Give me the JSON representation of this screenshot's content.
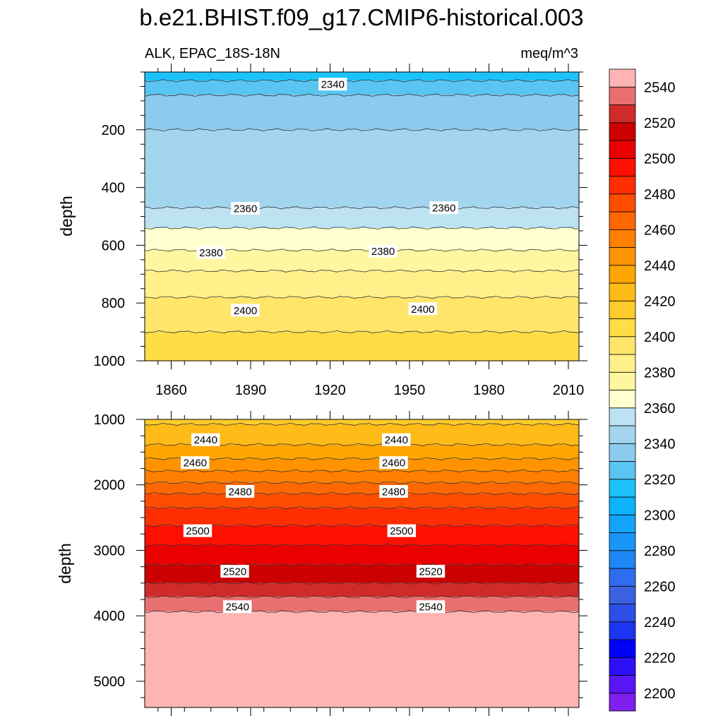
{
  "title": "b.e21.BHIST.f09_g17.CMIP6-historical.003",
  "left_label": "ALK, EPAC_18S-18N",
  "right_label": "meq/m^3",
  "colorbar": {
    "levels": [
      2200,
      2210,
      2220,
      2230,
      2240,
      2250,
      2260,
      2270,
      2280,
      2290,
      2300,
      2310,
      2320,
      2330,
      2340,
      2350,
      2360,
      2370,
      2380,
      2390,
      2400,
      2410,
      2420,
      2430,
      2440,
      2450,
      2460,
      2470,
      2480,
      2490,
      2500,
      2510,
      2520,
      2530,
      2540,
      2550
    ],
    "colors": [
      "#7f1ff0",
      "#5a15f5",
      "#2d10f7",
      "#0000ff",
      "#1c35f3",
      "#2b4fe8",
      "#3a62e0",
      "#2e6cf0",
      "#1f86f5",
      "#1995f7",
      "#11a4fa",
      "#0ab3fc",
      "#1cc2fa",
      "#5ac4f2",
      "#8ccbee",
      "#a3d5ef",
      "#bde2f2",
      "#ffffd0",
      "#fff7a0",
      "#fff08a",
      "#ffe66a",
      "#ffdd44",
      "#ffcb2a",
      "#ffbb17",
      "#ffa600",
      "#ff9400",
      "#ff7f00",
      "#ff6800",
      "#ff4d00",
      "#ff2e00",
      "#ff0f00",
      "#ea0000",
      "#cc0000",
      "#d12a2a",
      "#e87070",
      "#ffb4b4"
    ],
    "tick_labels": [
      "2200",
      "2220",
      "2240",
      "2260",
      "2280",
      "2300",
      "2320",
      "2340",
      "2360",
      "2380",
      "2400",
      "2420",
      "2440",
      "2460",
      "2480",
      "2500",
      "2520",
      "2540"
    ]
  },
  "chart_data": [
    {
      "type": "heatmap",
      "panel": "upper",
      "xlabel": "",
      "ylabel": "depth",
      "xlim": [
        1850,
        2014
      ],
      "ylim": [
        1000,
        0
      ],
      "x_ticks": [
        1860,
        1890,
        1920,
        1950,
        1980,
        2010
      ],
      "x_tick_labels": [
        "1860",
        "1890",
        "1920",
        "1950",
        "1980",
        "2010"
      ],
      "y_ticks": [
        200,
        400,
        600,
        800,
        1000
      ],
      "y_tick_labels": [
        "200",
        "400",
        "600",
        "800",
        "1000"
      ],
      "profile": {
        "depth": [
          0,
          30,
          60,
          100,
          150,
          200,
          300,
          380,
          430,
          470,
          500,
          540,
          600,
          660,
          700,
          760,
          820,
          900,
          1000
        ],
        "alk": [
          2325,
          2330,
          2338,
          2342,
          2346,
          2350,
          2350,
          2352,
          2356,
          2360,
          2364,
          2370,
          2378,
          2385,
          2392,
          2398,
          2404,
          2410,
          2414
        ]
      },
      "contour_labels": [
        {
          "text": "2340",
          "x": 1921,
          "depth": 42
        },
        {
          "text": "2360",
          "x": 1888,
          "depth": 472
        },
        {
          "text": "2360",
          "x": 1963,
          "depth": 470
        },
        {
          "text": "2380",
          "x": 1875,
          "depth": 625
        },
        {
          "text": "2380",
          "x": 1940,
          "depth": 620
        },
        {
          "text": "2400",
          "x": 1888,
          "depth": 825
        },
        {
          "text": "2400",
          "x": 1955,
          "depth": 820
        }
      ]
    },
    {
      "type": "heatmap",
      "panel": "lower",
      "xlabel": "",
      "ylabel": "depth",
      "xlim": [
        1850,
        2014
      ],
      "ylim": [
        5400,
        1000
      ],
      "y_ticks": [
        1000,
        2000,
        3000,
        4000,
        5000
      ],
      "y_tick_labels": [
        "1000",
        "2000",
        "3000",
        "4000",
        "5000"
      ],
      "profile": {
        "depth": [
          1000,
          1300,
          1600,
          1900,
          2200,
          2500,
          2800,
          3100,
          3400,
          3600,
          3800,
          4100,
          4500,
          5400
        ],
        "alk": [
          2428,
          2436,
          2450,
          2466,
          2484,
          2496,
          2506,
          2516,
          2526,
          2534,
          2545,
          2556,
          2558,
          2558
        ]
      },
      "contour_labels": [
        {
          "text": "2440",
          "x": 1873,
          "depth": 1310
        },
        {
          "text": "2440",
          "x": 1945,
          "depth": 1310
        },
        {
          "text": "2460",
          "x": 1869,
          "depth": 1660
        },
        {
          "text": "2460",
          "x": 1944,
          "depth": 1660
        },
        {
          "text": "2480",
          "x": 1886,
          "depth": 2100
        },
        {
          "text": "2480",
          "x": 1944,
          "depth": 2100
        },
        {
          "text": "2500",
          "x": 1870,
          "depth": 2700
        },
        {
          "text": "2500",
          "x": 1947,
          "depth": 2700
        },
        {
          "text": "2520",
          "x": 1884,
          "depth": 3320
        },
        {
          "text": "2520",
          "x": 1958,
          "depth": 3320
        },
        {
          "text": "2540",
          "x": 1885,
          "depth": 3860
        },
        {
          "text": "2540",
          "x": 1958,
          "depth": 3860
        }
      ]
    }
  ]
}
